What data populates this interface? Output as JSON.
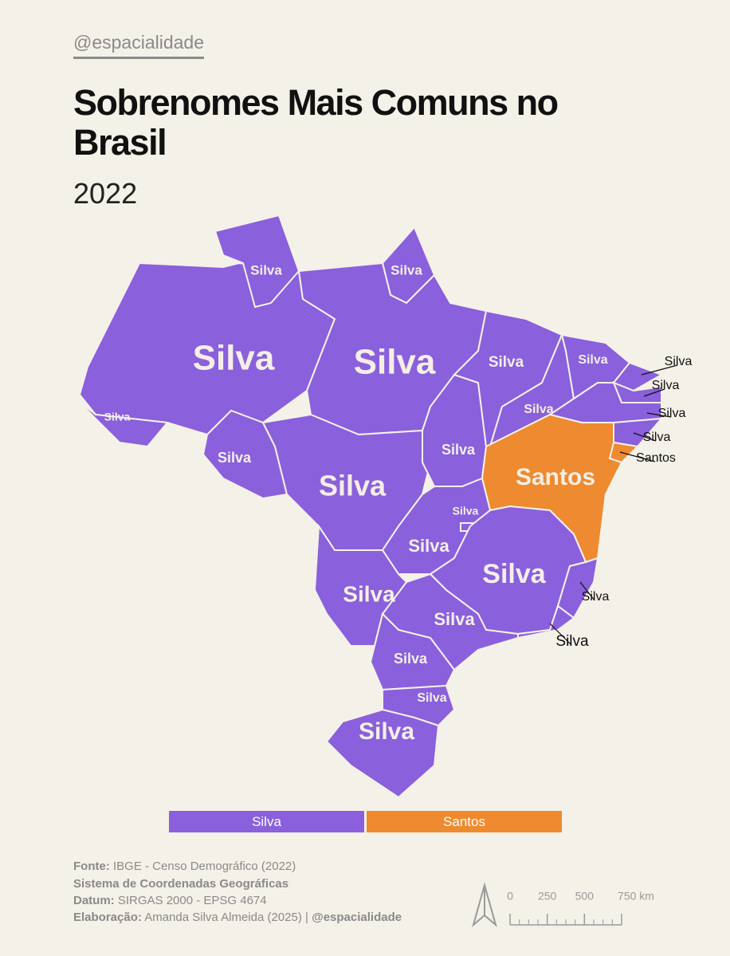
{
  "handle": "@espacialidade",
  "title": "Sobrenomes Mais Comuns no Brasil",
  "year": "2022",
  "states": [
    {
      "label": "Silva"
    },
    {
      "label": "Silva"
    },
    {
      "label": "Silva"
    },
    {
      "label": "Silva"
    },
    {
      "label": "Silva"
    },
    {
      "label": "Silva"
    },
    {
      "label": "Silva"
    },
    {
      "label": "Silva"
    },
    {
      "label": "Silva"
    },
    {
      "label": "Silva"
    },
    {
      "label": "Silva"
    },
    {
      "label": "Silva"
    },
    {
      "label": "Silva"
    },
    {
      "label": "Silva"
    },
    {
      "label": "Silva"
    },
    {
      "label": "Santos"
    },
    {
      "label": "Santos"
    },
    {
      "label": "Silva"
    },
    {
      "label": "Silva"
    },
    {
      "label": "Silva"
    },
    {
      "label": "Silva"
    },
    {
      "label": "Silva"
    },
    {
      "label": "Silva"
    },
    {
      "label": "Silva"
    },
    {
      "label": "Silva"
    },
    {
      "label": "Silva"
    },
    {
      "label": "Silva"
    }
  ],
  "legend": [
    {
      "name": "Silva",
      "color": "#8a60dc"
    },
    {
      "name": "Santos",
      "color": "#ee8a2f"
    }
  ],
  "footer": [
    {
      "label": "Fonte:",
      "text": "IBGE - Censo Demográfico (2022)"
    },
    {
      "label": "Sistema de Coordenadas Geográficas"
    },
    {
      "label": "Datum:",
      "text": "SIRGAS 2000 - EPSG 4674"
    },
    {
      "label": "Elaboração:",
      "text": "Amanda Silva Almeida (2025) |",
      "handle": "@espacialidade"
    }
  ],
  "scale": {
    "ticks": [
      0,
      250,
      500,
      {
        "value": 750,
        "label": "750 km"
      }
    ]
  }
}
